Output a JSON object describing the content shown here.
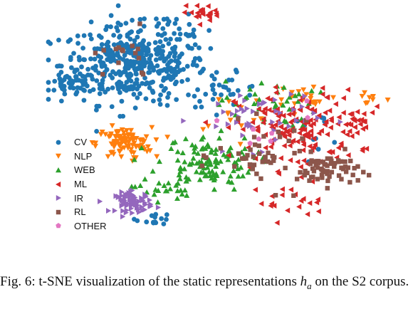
{
  "chart_data": {
    "type": "scatter",
    "title": "",
    "xlabel": "",
    "ylabel": "",
    "grid": false,
    "axes_visible": false,
    "legend_placement": "left",
    "colors": {
      "CV": "#1f77b4",
      "NLP": "#ff7f0e",
      "WEB": "#2ca02c",
      "ML": "#d62728",
      "IR": "#9467bd",
      "RL": "#8c564b",
      "OTHER": "#e377c2"
    },
    "series": [
      {
        "name": "CV",
        "marker": "circle",
        "color": "#1f77b4",
        "clusters": [
          {
            "cx": -12,
            "cy": 22,
            "rx": 12,
            "ry": 10,
            "n": 420
          },
          {
            "cx": -24,
            "cy": 16,
            "rx": 4,
            "ry": 3,
            "n": 40
          },
          {
            "cx": -4,
            "cy": 34,
            "rx": 4,
            "ry": 3,
            "n": 15
          },
          {
            "cx": -8,
            "cy": -25,
            "rx": 3,
            "ry": 1.5,
            "n": 14
          },
          {
            "cx": 6,
            "cy": 14,
            "rx": 6,
            "ry": 4,
            "n": 25
          },
          {
            "cx": 24,
            "cy": 2,
            "rx": 5,
            "ry": 4,
            "n": 10
          }
        ]
      },
      {
        "name": "NLP",
        "marker": "triangle-down",
        "color": "#ff7f0e",
        "clusters": [
          {
            "cx": -14,
            "cy": -2,
            "rx": 4.5,
            "ry": 4,
            "n": 95
          },
          {
            "cx": 22,
            "cy": 12,
            "rx": 5,
            "ry": 4,
            "n": 18
          },
          {
            "cx": 34,
            "cy": 12,
            "rx": 3,
            "ry": 2,
            "n": 8
          },
          {
            "cx": 10,
            "cy": 8,
            "rx": 10,
            "ry": 6,
            "n": 15
          }
        ]
      },
      {
        "name": "WEB",
        "marker": "triangle-up",
        "color": "#2ca02c",
        "clusters": [
          {
            "cx": 2,
            "cy": -8,
            "rx": 8,
            "ry": 7,
            "n": 120
          },
          {
            "cx": 14,
            "cy": 10,
            "rx": 8,
            "ry": 6,
            "n": 40
          },
          {
            "cx": -6,
            "cy": -16,
            "rx": 5,
            "ry": 3,
            "n": 20
          }
        ]
      },
      {
        "name": "ML",
        "marker": "triangle-left",
        "color": "#d62728",
        "clusters": [
          {
            "cx": 20,
            "cy": 2,
            "rx": 10,
            "ry": 10,
            "n": 150
          },
          {
            "cx": 2,
            "cy": 38,
            "rx": 4,
            "ry": 2,
            "n": 22
          },
          {
            "cx": 18,
            "cy": -20,
            "rx": 6,
            "ry": 4,
            "n": 20
          },
          {
            "cx": 32,
            "cy": 4,
            "rx": 4,
            "ry": 4,
            "n": 25
          }
        ]
      },
      {
        "name": "IR",
        "marker": "triangle-right",
        "color": "#9467bd",
        "clusters": [
          {
            "cx": -12,
            "cy": -20,
            "rx": 3,
            "ry": 2.5,
            "n": 75
          },
          {
            "cx": 12,
            "cy": 6,
            "rx": 10,
            "ry": 8,
            "n": 45
          }
        ]
      },
      {
        "name": "RL",
        "marker": "square",
        "color": "#8c564b",
        "clusters": [
          {
            "cx": 26,
            "cy": -10,
            "rx": 5,
            "ry": 4,
            "n": 65
          },
          {
            "cx": 14,
            "cy": -6,
            "rx": 8,
            "ry": 8,
            "n": 45
          },
          {
            "cx": -14,
            "cy": 24,
            "rx": 6,
            "ry": 6,
            "n": 15
          }
        ]
      },
      {
        "name": "OTHER",
        "marker": "pentagon",
        "color": "#e377c2",
        "clusters": [
          {
            "cx": 10,
            "cy": 0,
            "rx": 12,
            "ry": 10,
            "n": 8
          }
        ]
      }
    ]
  },
  "caption": {
    "prefix": "Fig. 6: t-SNE visualization of the static representations",
    "math_symbol": "h",
    "math_subscript": "a",
    "suffix_line1": "on",
    "line2": "the S2 corpus."
  }
}
